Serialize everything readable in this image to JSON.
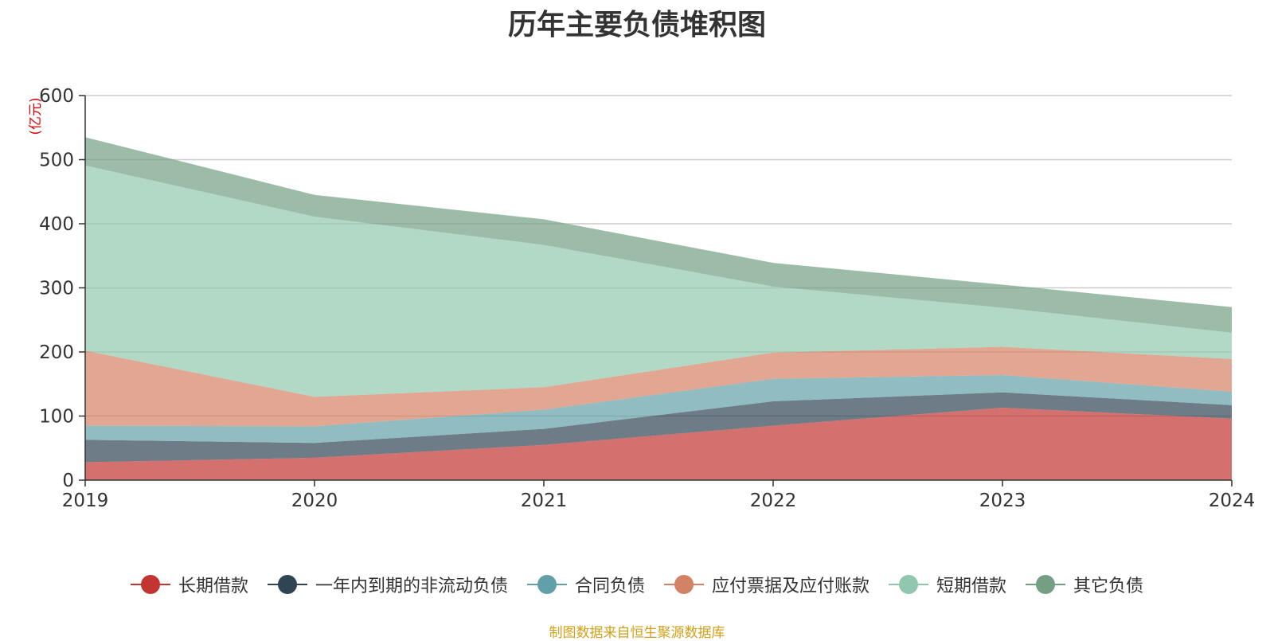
{
  "chart_data": {
    "type": "area",
    "stacked": true,
    "title": "历年主要负债堆积图",
    "ylabel": "(亿元)",
    "xlabel": "",
    "x": [
      "2019",
      "2020",
      "2021",
      "2022",
      "2023",
      "2024"
    ],
    "ylim": [
      0,
      600
    ],
    "yticks": [
      0,
      100,
      200,
      300,
      400,
      500,
      600
    ],
    "grid": true,
    "legend_position": "bottom",
    "series": [
      {
        "name": "长期借款",
        "color": "#c23531",
        "values": [
          28,
          35,
          55,
          85,
          113,
          96
        ]
      },
      {
        "name": "一年内到期的非流动负债",
        "color": "#2f4554",
        "values": [
          35,
          23,
          25,
          38,
          24,
          21
        ]
      },
      {
        "name": "合同负债",
        "color": "#61a0a8",
        "values": [
          22,
          26,
          30,
          35,
          27,
          21
        ]
      },
      {
        "name": "应付票据及应付账款",
        "color": "#d48265",
        "values": [
          117,
          46,
          35,
          41,
          44,
          51
        ]
      },
      {
        "name": "短期借款",
        "color": "#91c7ae",
        "values": [
          289,
          281,
          222,
          103,
          61,
          41
        ]
      },
      {
        "name": "其它负债",
        "color": "#749f83",
        "values": [
          44,
          34,
          40,
          37,
          36,
          40
        ]
      }
    ],
    "source_note": "制图数据来自恒生聚源数据库"
  }
}
